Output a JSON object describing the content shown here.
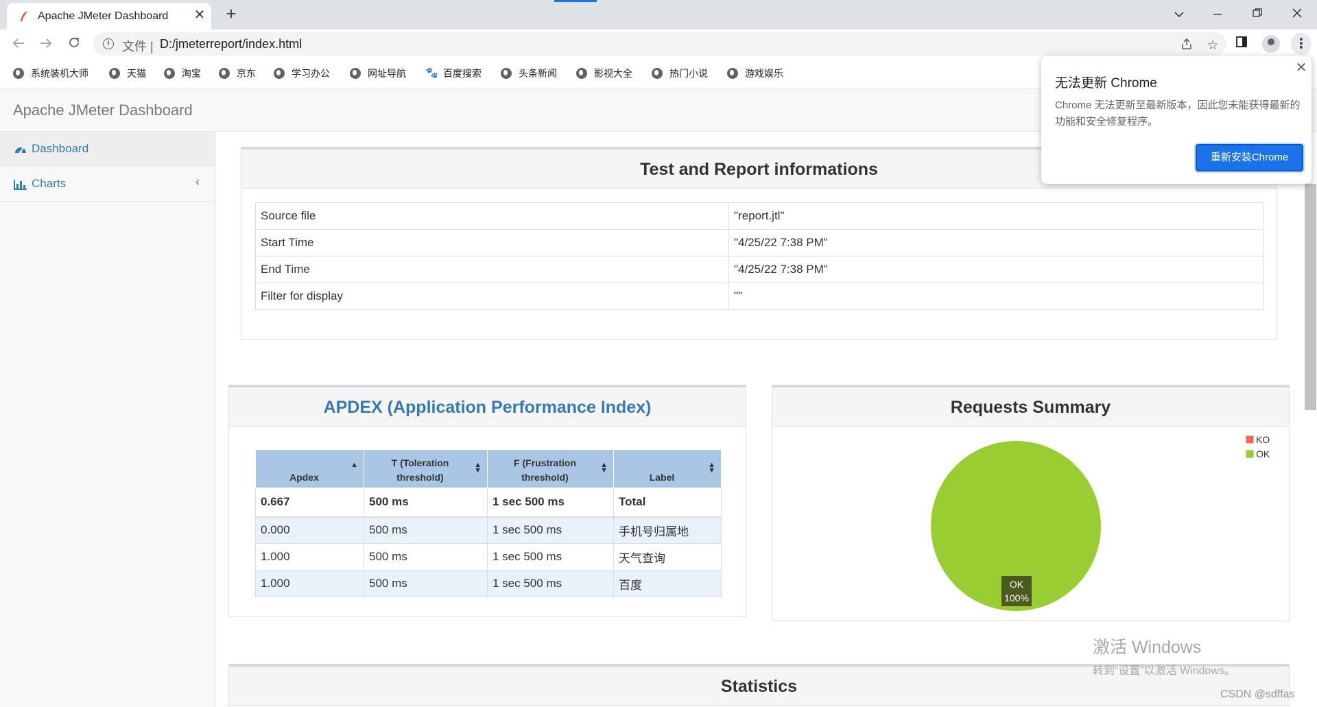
{
  "browser": {
    "tab_title": "Apache JMeter Dashboard",
    "tab_close": "✕",
    "new_tab": "+",
    "url_scheme": "文件 |",
    "url": "D:/jmeterreport/index.html",
    "bookmarks": [
      "系统装机大师",
      "天猫",
      "淘宝",
      "京东",
      "学习办公",
      "网址导航",
      "百度搜索",
      "头条新闻",
      "影视大全",
      "热门小说",
      "游戏娱乐"
    ]
  },
  "app": {
    "brand": "Apache JMeter Dashboard",
    "sidebar": [
      {
        "label": "Dashboard",
        "icon": "dashboard-icon"
      },
      {
        "label": "Charts",
        "icon": "bar-chart-icon"
      }
    ]
  },
  "info_panel": {
    "title": "Test and Report informations",
    "rows": [
      {
        "key": "Source file",
        "value": "\"report.jtl\""
      },
      {
        "key": "Start Time",
        "value": "\"4/25/22 7:38 PM\""
      },
      {
        "key": "End Time",
        "value": "\"4/25/22 7:38 PM\""
      },
      {
        "key": "Filter for display",
        "value": "\"\""
      }
    ]
  },
  "apdex_panel": {
    "title": "APDEX (Application Performance Index)",
    "headers": [
      "Apdex",
      "T (Toleration threshold)",
      "F (Frustration threshold)",
      "Label"
    ],
    "total": [
      "0.667",
      "500 ms",
      "1 sec 500 ms",
      "Total"
    ],
    "rows": [
      [
        "0.000",
        "500 ms",
        "1 sec 500 ms",
        "手机号归属地"
      ],
      [
        "1.000",
        "500 ms",
        "1 sec 500 ms",
        "天气查询"
      ],
      [
        "1.000",
        "500 ms",
        "1 sec 500 ms",
        "百度"
      ]
    ]
  },
  "summary_panel": {
    "title": "Requests Summary",
    "legend": [
      {
        "name": "KO",
        "color": "#ff6347"
      },
      {
        "name": "OK",
        "color": "#9acd32"
      }
    ],
    "pie_label": [
      "OK",
      "100%"
    ]
  },
  "chart_data": {
    "type": "pie",
    "categories": [
      "KO",
      "OK"
    ],
    "values": [
      0,
      100
    ],
    "colors": [
      "#ff6347",
      "#9acd32"
    ],
    "legend": "top-right"
  },
  "statistics_panel": {
    "title": "Statistics"
  },
  "update_popup": {
    "title": "无法更新 Chrome",
    "message": "Chrome 无法更新至最新版本，因此您未能获得最新的功能和安全修复程序。",
    "button": "重新安装Chrome",
    "close": "✕"
  },
  "watermark": {
    "line1": "激活 Windows",
    "line2": "转到“设置”以激活 Windows。"
  },
  "credit": "CSDN @sdffas"
}
